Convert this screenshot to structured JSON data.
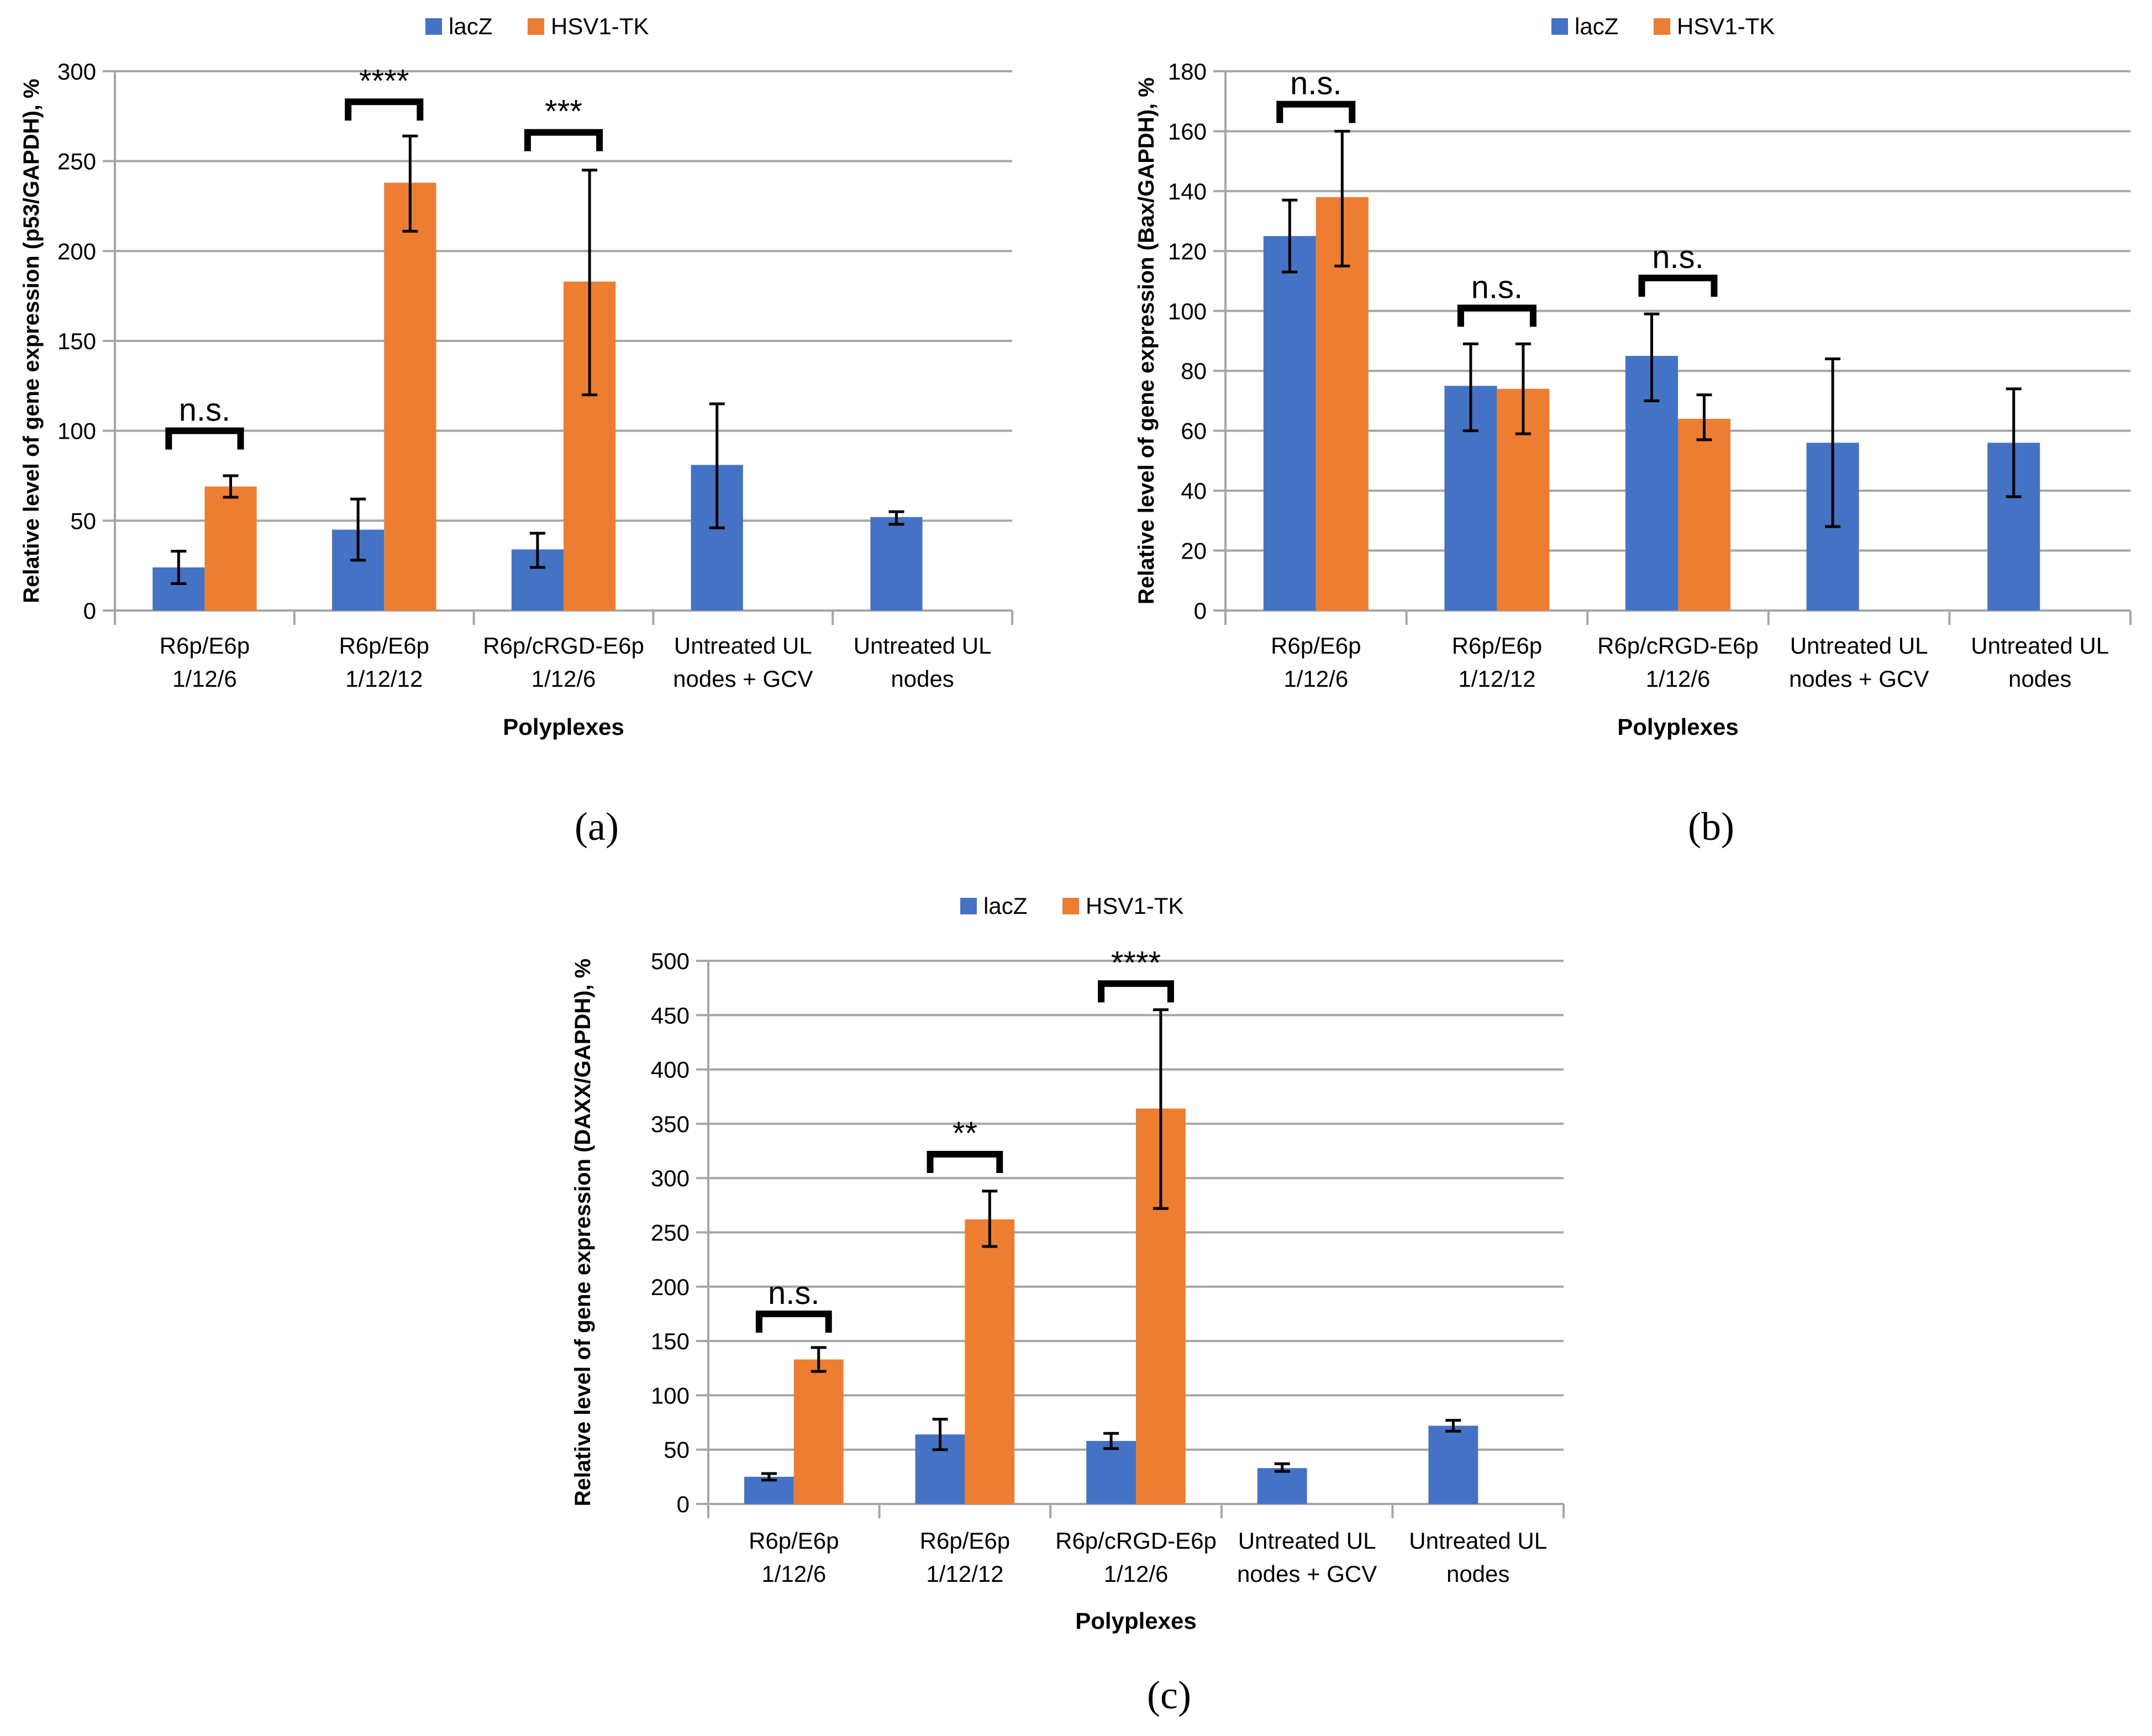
{
  "colors": {
    "lacz": "#4472C4",
    "hsv": "#ED7D31",
    "grid": "#A6A6A6",
    "axis": "#A6A6A6",
    "ink": "#000000"
  },
  "chart_data": [
    {
      "type": "bar",
      "panel_label": "(a)",
      "ylabel": "Relative level of gene expression (p53/GAPDH), %",
      "xlabel": "Polyplexes",
      "ylim": [
        0,
        300
      ],
      "yticks": [
        "0",
        "50",
        "100",
        "150",
        "200",
        "250",
        "300"
      ],
      "categories": [
        [
          "R6p/E6p",
          "1/12/6"
        ],
        [
          "R6p/E6p",
          "1/12/12"
        ],
        [
          "R6p/cRGD-E6p",
          "1/12/6"
        ],
        [
          "Untreated UL",
          "nodes + GCV"
        ],
        [
          "Untreated UL",
          "nodes"
        ]
      ],
      "legend": [
        "lacZ",
        "HSV1-TK"
      ],
      "series": [
        {
          "name": "lacZ",
          "values": [
            24,
            45,
            34,
            81,
            52
          ],
          "err_low": [
            15,
            28,
            24,
            46,
            48
          ],
          "err_high": [
            33,
            62,
            43,
            115,
            55
          ]
        },
        {
          "name": "HSV1-TK",
          "values": [
            69,
            238,
            183,
            null,
            null
          ],
          "err_low": [
            63,
            211,
            120,
            null,
            null
          ],
          "err_high": [
            75,
            264,
            245,
            null,
            null
          ]
        }
      ],
      "significance": [
        {
          "category": 0,
          "label": "n.s.",
          "level": 100
        },
        {
          "category": 1,
          "label": "****",
          "level": 283
        },
        {
          "category": 2,
          "label": "***",
          "level": 266
        }
      ]
    },
    {
      "type": "bar",
      "panel_label": "(b)",
      "ylabel": "Relative level of gene expression (Bax/GAPDH), %",
      "xlabel": "Polyplexes",
      "ylim": [
        0,
        180
      ],
      "yticks": [
        "0",
        "20",
        "40",
        "60",
        "80",
        "100",
        "120",
        "140",
        "160",
        "180"
      ],
      "categories": [
        [
          "R6p/E6p",
          "1/12/6"
        ],
        [
          "R6p/E6p",
          "1/12/12"
        ],
        [
          "R6p/cRGD-E6p",
          "1/12/6"
        ],
        [
          "Untreated UL",
          "nodes + GCV"
        ],
        [
          "Untreated UL",
          "nodes"
        ]
      ],
      "legend": [
        "lacZ",
        "HSV1-TK"
      ],
      "series": [
        {
          "name": "lacZ",
          "values": [
            125,
            75,
            85,
            56,
            56
          ],
          "err_low": [
            113,
            60,
            70,
            28,
            38
          ],
          "err_high": [
            137,
            89,
            99,
            84,
            74
          ]
        },
        {
          "name": "HSV1-TK",
          "values": [
            138,
            74,
            64,
            null,
            null
          ],
          "err_low": [
            115,
            59,
            57,
            null,
            null
          ],
          "err_high": [
            160,
            89,
            72,
            null,
            null
          ]
        }
      ],
      "significance": [
        {
          "category": 0,
          "label": "n.s.",
          "level": 169
        },
        {
          "category": 1,
          "label": "n.s.",
          "level": 101
        },
        {
          "category": 2,
          "label": "n.s.",
          "level": 111
        }
      ]
    },
    {
      "type": "bar",
      "panel_label": "(c)",
      "ylabel": "Relative level of gene expression (DAXX/GAPDH), %",
      "xlabel": "Polyplexes",
      "ylim": [
        0,
        500
      ],
      "yticks": [
        "0",
        "50",
        "100",
        "150",
        "200",
        "250",
        "300",
        "350",
        "400",
        "450",
        "500"
      ],
      "categories": [
        [
          "R6p/E6p",
          "1/12/6"
        ],
        [
          "R6p/E6p",
          "1/12/12"
        ],
        [
          "R6p/cRGD-E6p",
          "1/12/6"
        ],
        [
          "Untreated UL",
          "nodes + GCV"
        ],
        [
          "Untreated UL",
          "nodes"
        ]
      ],
      "legend": [
        "lacZ",
        "HSV1-TK"
      ],
      "series": [
        {
          "name": "lacZ",
          "values": [
            25,
            64,
            58,
            33,
            72
          ],
          "err_low": [
            22,
            50,
            51,
            30,
            67
          ],
          "err_high": [
            28,
            78,
            65,
            37,
            77
          ]
        },
        {
          "name": "HSV1-TK",
          "values": [
            133,
            262,
            364,
            null,
            null
          ],
          "err_low": [
            122,
            237,
            272,
            null,
            null
          ],
          "err_high": [
            144,
            288,
            455,
            null,
            null
          ]
        }
      ],
      "significance": [
        {
          "category": 0,
          "label": "n.s.",
          "level": 175
        },
        {
          "category": 1,
          "label": "**",
          "level": 322
        },
        {
          "category": 2,
          "label": "****",
          "level": 479
        }
      ]
    }
  ]
}
